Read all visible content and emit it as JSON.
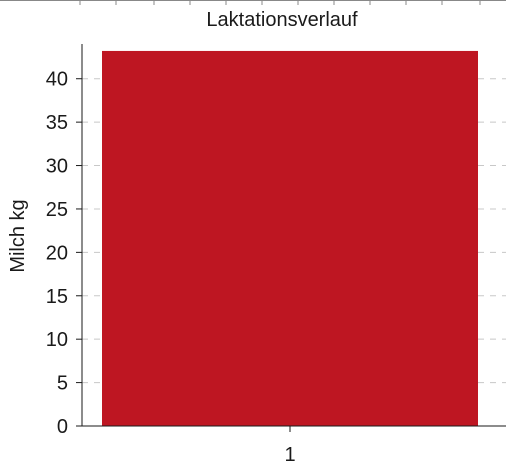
{
  "chart_data": {
    "type": "bar",
    "title": "Laktationsverlauf",
    "ylabel": "Milch kg",
    "xlabel": "",
    "categories": [
      "1"
    ],
    "series": [
      {
        "values": [
          43.2
        ]
      }
    ],
    "ylim": [
      0,
      44
    ],
    "yticks": [
      0,
      5,
      10,
      15,
      20,
      25,
      30,
      35,
      40
    ],
    "grid": true,
    "legend": "none",
    "colors": {
      "bar": "#be1622",
      "grid": "#c8c8c8",
      "axis": "#1a1a1a"
    }
  }
}
